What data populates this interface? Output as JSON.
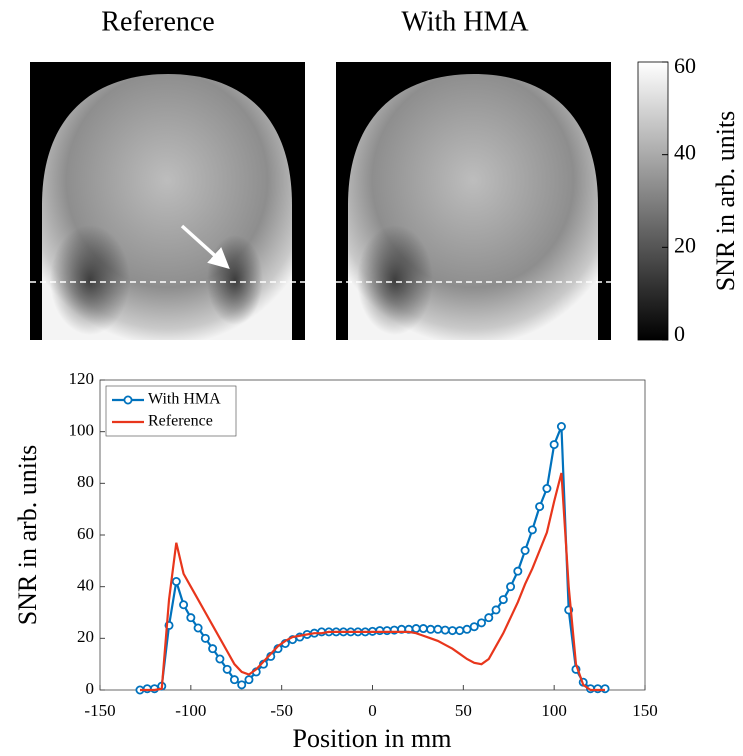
{
  "images": {
    "titles": [
      "Reference",
      "With HMA"
    ]
  },
  "colorbar": {
    "label": "SNR in arb. units",
    "lim": [
      0,
      60
    ],
    "ticks": [
      0,
      20,
      40,
      60
    ]
  },
  "chart_data": {
    "type": "line",
    "xlabel": "Position in mm",
    "ylabel": "SNR in arb. units",
    "x": [
      -128,
      -124,
      -120,
      -116,
      -112,
      -108,
      -104,
      -100,
      -96,
      -92,
      -88,
      -84,
      -80,
      -76,
      -72,
      -68,
      -64,
      -60,
      -56,
      -52,
      -48,
      -44,
      -40,
      -36,
      -32,
      -28,
      -24,
      -20,
      -16,
      -12,
      -8,
      -4,
      0,
      4,
      8,
      12,
      16,
      20,
      24,
      28,
      32,
      36,
      40,
      44,
      48,
      52,
      56,
      60,
      64,
      68,
      72,
      76,
      80,
      84,
      88,
      92,
      96,
      100,
      104,
      108,
      112,
      116,
      120,
      124,
      128
    ],
    "series": [
      {
        "name": "With HMA",
        "color": "#0072bd",
        "marker": true,
        "values": [
          0,
          0.5,
          0.5,
          1.5,
          25,
          42,
          33,
          28,
          24,
          20,
          16,
          12,
          8,
          4,
          2,
          4,
          7,
          10,
          13,
          16,
          18,
          19.5,
          20.5,
          21.5,
          22,
          22.5,
          22.5,
          22.5,
          22.5,
          22.5,
          22.5,
          22.5,
          22.7,
          23,
          23,
          23.2,
          23.5,
          23.5,
          23.8,
          23.8,
          23.5,
          23.5,
          23.2,
          23,
          23,
          23.5,
          24.5,
          26,
          28,
          31,
          35,
          40,
          46,
          54,
          62,
          71,
          78,
          95,
          102,
          31,
          8,
          3,
          0.5,
          0.5,
          0.5
        ]
      },
      {
        "name": "Reference",
        "color": "#e8361c",
        "marker": false,
        "values": [
          0,
          0,
          0,
          0.5,
          35,
          57,
          45,
          40,
          35,
          30,
          25,
          20,
          15,
          10,
          7,
          6,
          8,
          11,
          14,
          17,
          19,
          20.5,
          21,
          21.5,
          22,
          22,
          22.5,
          22.5,
          22.5,
          22.5,
          22.5,
          22.5,
          22.5,
          22.5,
          22.5,
          22.5,
          22.5,
          22.5,
          22,
          21,
          20,
          19,
          17.5,
          16,
          14,
          12,
          10.5,
          10,
          12,
          17,
          22,
          28,
          34,
          41,
          47,
          54,
          61,
          73,
          84,
          40,
          10,
          2,
          0,
          0,
          0
        ]
      }
    ],
    "xlim": [
      -150,
      150
    ],
    "xticks": [
      -150,
      -100,
      -50,
      0,
      50,
      100,
      150
    ],
    "ylim": [
      0,
      120
    ],
    "yticks": [
      0,
      20,
      40,
      60,
      80,
      100,
      120
    ],
    "legend": "upper left"
  }
}
